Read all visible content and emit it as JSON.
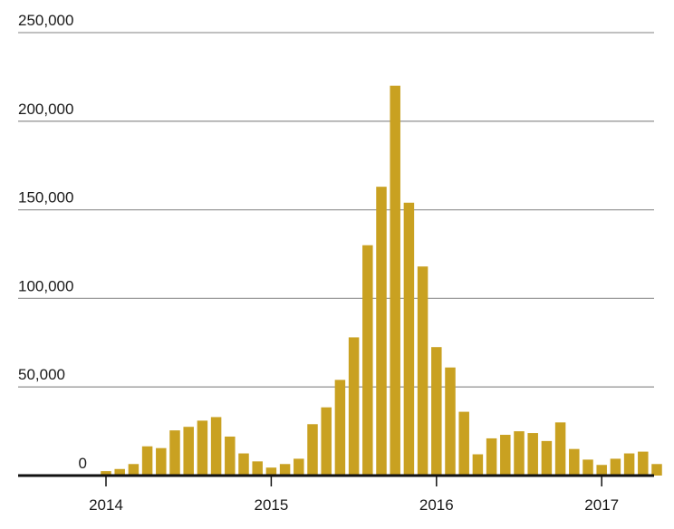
{
  "chart_data": {
    "type": "bar",
    "title": "",
    "xlabel": "",
    "ylabel": "",
    "ylim": [
      0,
      250000
    ],
    "y_ticks": [
      {
        "value": 0,
        "label": "0"
      },
      {
        "value": 50000,
        "label": "50,000"
      },
      {
        "value": 100000,
        "label": "100,000"
      },
      {
        "value": 150000,
        "label": "150,000"
      },
      {
        "value": 200000,
        "label": "200,000"
      },
      {
        "value": 250000,
        "label": "250,000"
      }
    ],
    "x_ticks": [
      {
        "category": "2014-01",
        "label": "2014"
      },
      {
        "category": "2015-01",
        "label": "2015"
      },
      {
        "category": "2016-01",
        "label": "2016"
      },
      {
        "category": "2017-01",
        "label": "2017"
      }
    ],
    "grid": true,
    "bar_color": "#C9A121",
    "categories": [
      "2014-01",
      "2014-02",
      "2014-03",
      "2014-04",
      "2014-05",
      "2014-06",
      "2014-07",
      "2014-08",
      "2014-09",
      "2014-10",
      "2014-11",
      "2014-12",
      "2015-01",
      "2015-02",
      "2015-03",
      "2015-04",
      "2015-05",
      "2015-06",
      "2015-07",
      "2015-08",
      "2015-09",
      "2015-10",
      "2015-11",
      "2015-12",
      "2016-01",
      "2016-02",
      "2016-03",
      "2016-04",
      "2016-05",
      "2016-06",
      "2016-07",
      "2016-08",
      "2016-09",
      "2016-10",
      "2016-11",
      "2016-12",
      "2017-01",
      "2017-02",
      "2017-03",
      "2017-04",
      "2017-05"
    ],
    "values": [
      2500,
      3700,
      6500,
      16500,
      15500,
      25500,
      27500,
      31000,
      33000,
      22000,
      12500,
      8000,
      4500,
      6500,
      9500,
      29000,
      38500,
      54000,
      78000,
      130000,
      163000,
      220000,
      154000,
      118000,
      72500,
      61000,
      36000,
      12000,
      21000,
      23000,
      25000,
      24000,
      19500,
      30000,
      15000,
      9000,
      6000,
      9500,
      12500,
      13500,
      6500
    ]
  }
}
